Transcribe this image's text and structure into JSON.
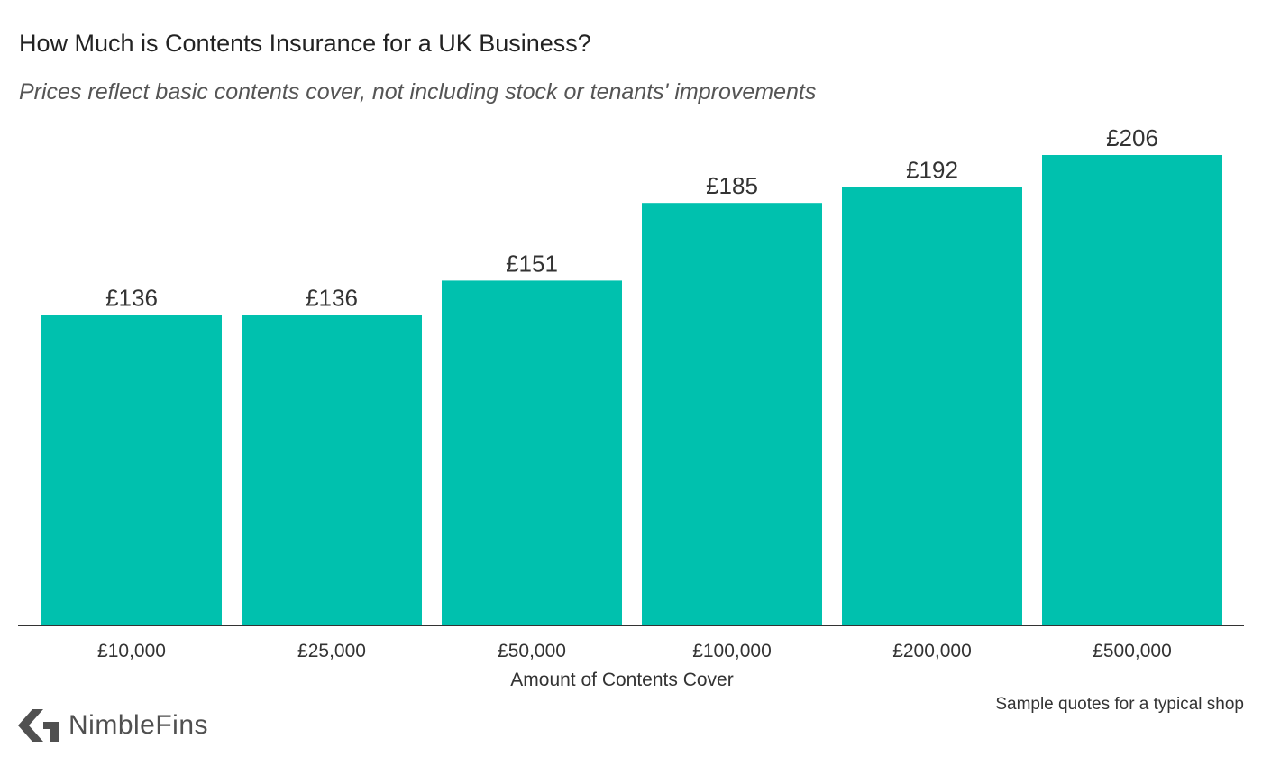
{
  "title": "How Much is Contents Insurance for a UK Business?",
  "subtitle": "Prices reflect basic contents cover, not including stock or tenants' improvements",
  "footnote": "Sample quotes for a typical shop",
  "brand": {
    "name": "NimbleFins",
    "logo_icon": "nimblefins-chevron-icon"
  },
  "colors": {
    "bar": "#00c1ae",
    "axis": "#333333",
    "text": "#222222",
    "brand": "#505050"
  },
  "chart_data": {
    "type": "bar",
    "title": "How Much is Contents Insurance for a UK Business?",
    "subtitle": "Prices reflect basic contents cover, not including stock or tenants' improvements",
    "xlabel": "Amount of Contents Cover",
    "ylabel": "",
    "categories": [
      "£10,000",
      "£25,000",
      "£50,000",
      "£100,000",
      "£200,000",
      "£500,000"
    ],
    "values": [
      136,
      136,
      151,
      185,
      192,
      206
    ],
    "value_labels": [
      "£136",
      "£136",
      "£151",
      "£185",
      "£192",
      "£206"
    ],
    "ylim": [
      0,
      206
    ],
    "grid": false,
    "legend": "none"
  }
}
